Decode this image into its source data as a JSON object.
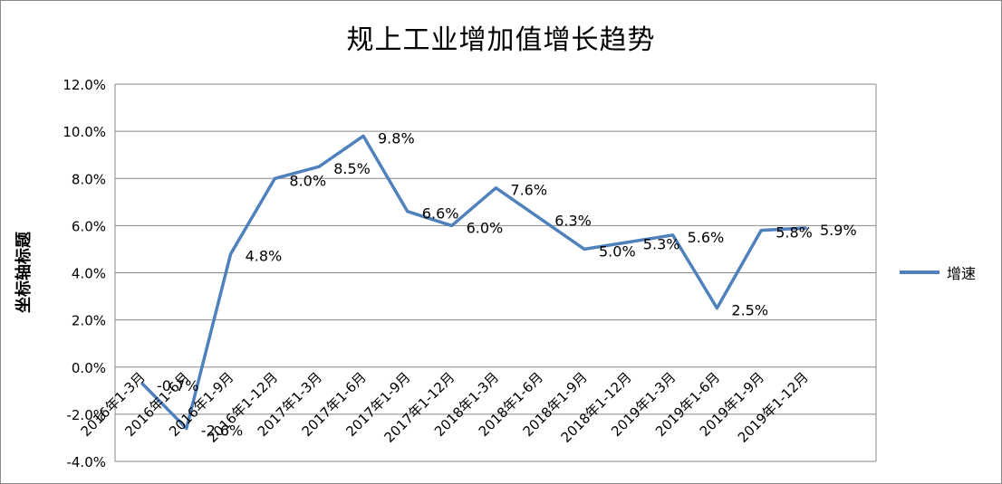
{
  "chart_data": {
    "type": "line",
    "title": "规上工业增加值增长趋势",
    "ylabel": "坐标轴标题",
    "xlabel": "",
    "ylim": [
      -0.04,
      0.12
    ],
    "y_ticks": [
      "12.0%",
      "10.0%",
      "8.0%",
      "6.0%",
      "4.0%",
      "2.0%",
      "0.0%",
      "-2.0%",
      "-4.0%"
    ],
    "grid": true,
    "legend_position": "right",
    "categories": [
      "2016年1-3月",
      "2016年1-6月",
      "2016年1-9月",
      "2016年1-12月",
      "2017年1-3月",
      "2017年1-6月",
      "2017年1-9月",
      "2017年1-12月",
      "2018年1-3月",
      "2018年1-6月",
      "2018年1-9月",
      "2018年1-12月",
      "2019年1-3月",
      "2019年1-6月",
      "2019年1-9月",
      "2019年1-12月"
    ],
    "series": [
      {
        "name": "增速",
        "color": "#4f81bd",
        "values": [
          -0.007,
          -0.026,
          0.048,
          0.08,
          0.085,
          0.098,
          0.066,
          0.06,
          0.076,
          0.063,
          0.05,
          0.053,
          0.056,
          0.025,
          0.058,
          0.059
        ],
        "labels": [
          "-0.7%",
          "-2.6%",
          "4.8%",
          "8.0%",
          "8.5%",
          "9.8%",
          "6.6%",
          "6.0%",
          "7.6%",
          "6.3%",
          "5.0%",
          "5.3%",
          "5.6%",
          "2.5%",
          "5.8%",
          "5.9%"
        ]
      }
    ]
  }
}
